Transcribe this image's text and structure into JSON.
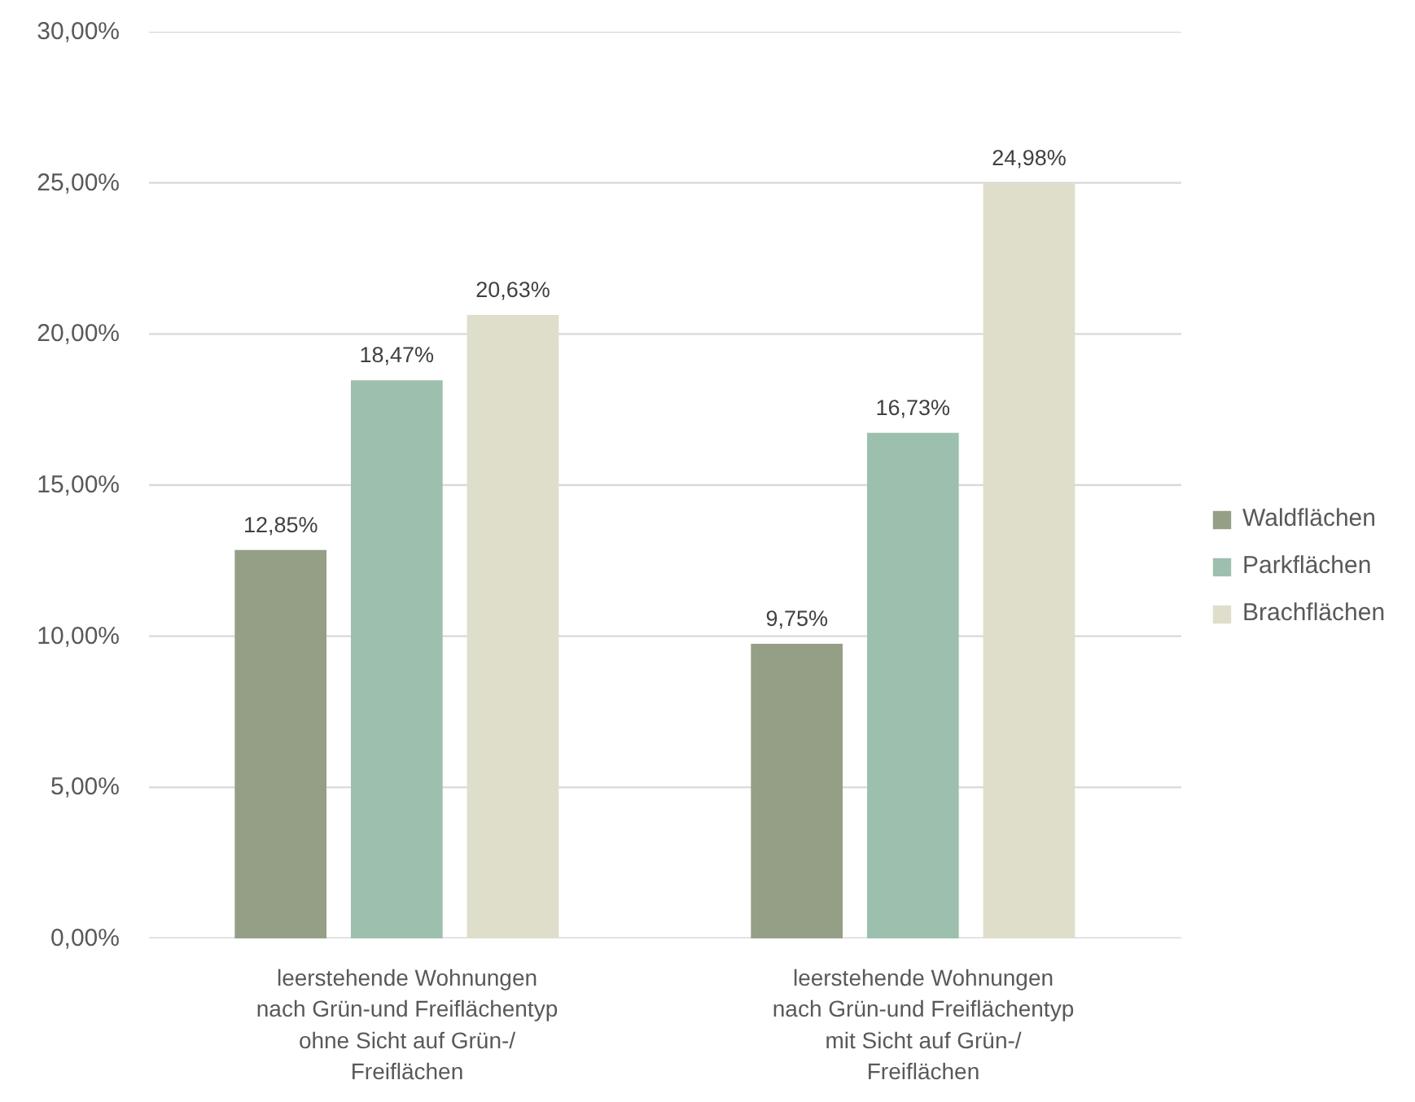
{
  "chart_data": {
    "type": "bar",
    "categories": [
      "leerstehende Wohnungen\nnach Grün-und Freiflächentyp\nohne Sicht auf Grün-/\nFreiflächen",
      "leerstehende Wohnungen\nnach Grün-und Freiflächentyp\nmit Sicht auf Grün-/\nFreiflächen"
    ],
    "series": [
      {
        "name": "Waldflächen",
        "color": "#949f86",
        "values": [
          12.85,
          9.75
        ],
        "value_labels": [
          "12,85%",
          "9,75%"
        ]
      },
      {
        "name": "Parkflächen",
        "color": "#9dbfae",
        "values": [
          18.47,
          16.73
        ],
        "value_labels": [
          "18,47%",
          "16,73%"
        ]
      },
      {
        "name": "Brachflächen",
        "color": "#dfdeca",
        "values": [
          20.63,
          24.98
        ],
        "value_labels": [
          "20,63%",
          "24,98%"
        ]
      }
    ],
    "ylim": [
      0,
      30
    ],
    "yticks": [
      {
        "value": 0,
        "label": "0,00%"
      },
      {
        "value": 5,
        "label": "5,00%"
      },
      {
        "value": 10,
        "label": "10,00%"
      },
      {
        "value": 15,
        "label": "15,00%"
      },
      {
        "value": 20,
        "label": "20,00%"
      },
      {
        "value": 25,
        "label": "25,00%"
      },
      {
        "value": 30,
        "label": "30,00%"
      }
    ],
    "grid": "y",
    "legend": "right"
  }
}
